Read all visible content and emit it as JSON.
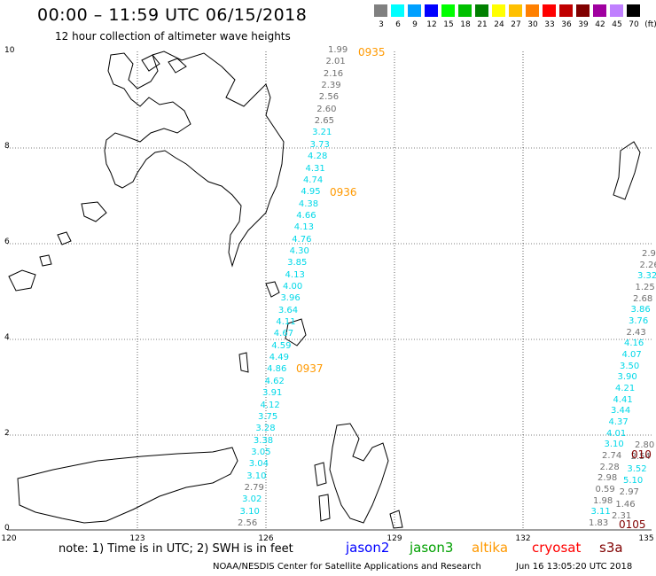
{
  "title": "00:00 – 11:59 UTC 06/15/2018",
  "subtitle": "12 hour collection of altimeter wave heights",
  "colorbar": {
    "unit": "(ft)",
    "labels": [
      "3",
      "6",
      "9",
      "12",
      "15",
      "18",
      "21",
      "24",
      "27",
      "30",
      "33",
      "36",
      "39",
      "42",
      "45",
      "70"
    ],
    "colors": [
      "#808080",
      "#00ffff",
      "#00a0ff",
      "#0000ff",
      "#00ff00",
      "#00c000",
      "#008000",
      "#ffff00",
      "#ffc000",
      "#ff8000",
      "#ff0000",
      "#c00000",
      "#800000",
      "#a000a0",
      "#c080ff",
      "#000000"
    ]
  },
  "axes": {
    "y_ticks": [
      "10",
      "8",
      "6",
      "4",
      "2",
      "0"
    ],
    "x_ticks": [
      "120",
      "123",
      "126",
      "129",
      "132",
      "135"
    ]
  },
  "track_values": [
    {
      "v": "1.99",
      "c": "gray"
    },
    {
      "v": "2.01",
      "c": "gray"
    },
    {
      "v": "2.16",
      "c": "gray"
    },
    {
      "v": "2.39",
      "c": "gray"
    },
    {
      "v": "2.56",
      "c": "gray"
    },
    {
      "v": "2.60",
      "c": "gray"
    },
    {
      "v": "2.65",
      "c": "gray"
    },
    {
      "v": "3.21",
      "c": "cyan"
    },
    {
      "v": "3.73",
      "c": "cyan"
    },
    {
      "v": "4.28",
      "c": "cyan"
    },
    {
      "v": "4.31",
      "c": "cyan"
    },
    {
      "v": "4.74",
      "c": "cyan"
    },
    {
      "v": "4.95",
      "c": "cyan"
    },
    {
      "v": "4.38",
      "c": "cyan"
    },
    {
      "v": "4.66",
      "c": "cyan"
    },
    {
      "v": "4.13",
      "c": "cyan"
    },
    {
      "v": "4.76",
      "c": "cyan"
    },
    {
      "v": "4.30",
      "c": "cyan"
    },
    {
      "v": "3.85",
      "c": "cyan"
    },
    {
      "v": "4.13",
      "c": "cyan"
    },
    {
      "v": "4.00",
      "c": "cyan"
    },
    {
      "v": "3.96",
      "c": "cyan"
    },
    {
      "v": "3.64",
      "c": "cyan"
    },
    {
      "v": "4.11",
      "c": "cyan"
    },
    {
      "v": "4.67",
      "c": "cyan"
    },
    {
      "v": "4.59",
      "c": "cyan"
    },
    {
      "v": "4.49",
      "c": "cyan"
    },
    {
      "v": "4.86",
      "c": "cyan"
    },
    {
      "v": "4.62",
      "c": "cyan"
    },
    {
      "v": "3.91",
      "c": "cyan"
    },
    {
      "v": "4.12",
      "c": "cyan"
    },
    {
      "v": "3.75",
      "c": "cyan"
    },
    {
      "v": "3.28",
      "c": "cyan"
    },
    {
      "v": "3.38",
      "c": "cyan"
    },
    {
      "v": "3.05",
      "c": "cyan"
    },
    {
      "v": "3.04",
      "c": "cyan"
    },
    {
      "v": "3.10",
      "c": "cyan"
    },
    {
      "v": "2.79",
      "c": "gray"
    },
    {
      "v": "3.02",
      "c": "cyan"
    },
    {
      "v": "3.10",
      "c": "cyan"
    },
    {
      "v": "2.56",
      "c": "gray"
    }
  ],
  "track_times": [
    "0935",
    "0936",
    "0937"
  ],
  "right_values": [
    {
      "v": "2.9",
      "c": "gray"
    },
    {
      "v": "2.26",
      "c": "gray"
    },
    {
      "v": "3.32",
      "c": "cyan"
    },
    {
      "v": "1.25",
      "c": "gray"
    },
    {
      "v": "2.68",
      "c": "gray"
    },
    {
      "v": "3.86",
      "c": "cyan"
    },
    {
      "v": "3.76",
      "c": "cyan"
    },
    {
      "v": "2.43",
      "c": "gray"
    },
    {
      "v": "4.16",
      "c": "cyan"
    },
    {
      "v": "4.07",
      "c": "cyan"
    },
    {
      "v": "3.50",
      "c": "cyan"
    },
    {
      "v": "3.90",
      "c": "cyan"
    },
    {
      "v": "4.21",
      "c": "cyan"
    },
    {
      "v": "4.41",
      "c": "cyan"
    },
    {
      "v": "3.44",
      "c": "cyan"
    },
    {
      "v": "4.37",
      "c": "cyan"
    },
    {
      "v": "4.01",
      "c": "cyan"
    },
    {
      "v": "3.10",
      "c": "cyan"
    },
    {
      "v": "2.74",
      "c": "gray"
    },
    {
      "v": "2.28",
      "c": "gray"
    },
    {
      "v": "2.98",
      "c": "gray"
    },
    {
      "v": "0.59",
      "c": "gray"
    },
    {
      "v": "1.98",
      "c": "gray"
    },
    {
      "v": "3.11",
      "c": "cyan"
    },
    {
      "v": "1.83",
      "c": "gray"
    }
  ],
  "right_values_2": [
    {
      "v": "2.80",
      "c": "gray"
    },
    {
      "v": "2.54",
      "c": "gray"
    },
    {
      "v": "3.52",
      "c": "cyan"
    },
    {
      "v": "5.10",
      "c": "cyan"
    },
    {
      "v": "2.97",
      "c": "gray"
    },
    {
      "v": "1.46",
      "c": "gray"
    },
    {
      "v": "2.31",
      "c": "gray"
    }
  ],
  "right_times": [
    {
      "v": "010",
      "c": "#800000"
    },
    {
      "v": "0105",
      "c": "#800000"
    }
  ],
  "note": "note:  1) Time is in UTC;  2) SWH is in feet",
  "legend": [
    {
      "label": "jason2",
      "color": "#0000ff"
    },
    {
      "label": "jason3",
      "color": "#00a000"
    },
    {
      "label": "altika",
      "color": "#ff9900"
    },
    {
      "label": "cryosat",
      "color": "#ff0000"
    },
    {
      "label": "s3a",
      "color": "#800000"
    }
  ],
  "footer": "NOAA/NESDIS Center for Satellite Applications and Research",
  "footer_date": "Jun 16 13:05:20 UTC 2018"
}
